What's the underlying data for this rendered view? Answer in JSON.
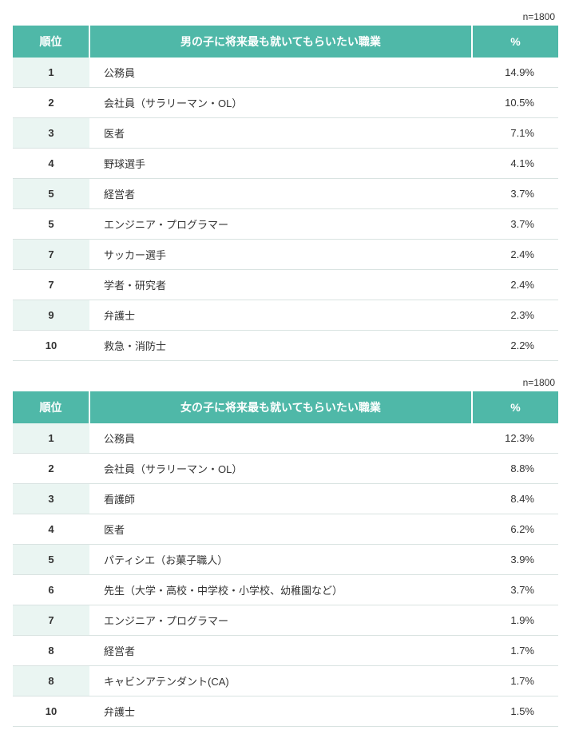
{
  "tables": [
    {
      "sample_note": "n=1800",
      "header": {
        "rank": "順位",
        "title": "男の子に将来最も就いてもらいたい職業",
        "pct": "%"
      },
      "rows": [
        {
          "rank": "1",
          "job": "公務員",
          "pct": "14.9%"
        },
        {
          "rank": "2",
          "job": "会社員（サラリーマン・OL）",
          "pct": "10.5%"
        },
        {
          "rank": "3",
          "job": "医者",
          "pct": "7.1%"
        },
        {
          "rank": "4",
          "job": "野球選手",
          "pct": "4.1%"
        },
        {
          "rank": "5",
          "job": "経営者",
          "pct": "3.7%"
        },
        {
          "rank": "5",
          "job": "エンジニア・プログラマー",
          "pct": "3.7%"
        },
        {
          "rank": "7",
          "job": "サッカー選手",
          "pct": "2.4%"
        },
        {
          "rank": "7",
          "job": "学者・研究者",
          "pct": "2.4%"
        },
        {
          "rank": "9",
          "job": "弁護士",
          "pct": "2.3%"
        },
        {
          "rank": "10",
          "job": "救急・消防士",
          "pct": "2.2%"
        }
      ]
    },
    {
      "sample_note": "n=1800",
      "header": {
        "rank": "順位",
        "title": "女の子に将来最も就いてもらいたい職業",
        "pct": "%"
      },
      "rows": [
        {
          "rank": "1",
          "job": "公務員",
          "pct": "12.3%"
        },
        {
          "rank": "2",
          "job": "会社員（サラリーマン・OL）",
          "pct": "8.8%"
        },
        {
          "rank": "3",
          "job": "看護師",
          "pct": "8.4%"
        },
        {
          "rank": "4",
          "job": "医者",
          "pct": "6.2%"
        },
        {
          "rank": "5",
          "job": "パティシエ（お菓子職人）",
          "pct": "3.9%"
        },
        {
          "rank": "6",
          "job": "先生（大学・高校・中学校・小学校、幼稚園など）",
          "pct": "3.7%"
        },
        {
          "rank": "7",
          "job": "エンジニア・プログラマー",
          "pct": "1.9%"
        },
        {
          "rank": "8",
          "job": "経営者",
          "pct": "1.7%"
        },
        {
          "rank": "8",
          "job": "キャビンアテンダント(CA)",
          "pct": "1.7%"
        },
        {
          "rank": "10",
          "job": "弁護士",
          "pct": "1.5%"
        }
      ]
    }
  ],
  "colors": {
    "header_bg": "#4fb8a8",
    "header_fg": "#ffffff",
    "rank_stripe": "#eaf5f2",
    "row_border": "#d9e3e1",
    "text": "#333333",
    "bg": "#ffffff"
  }
}
